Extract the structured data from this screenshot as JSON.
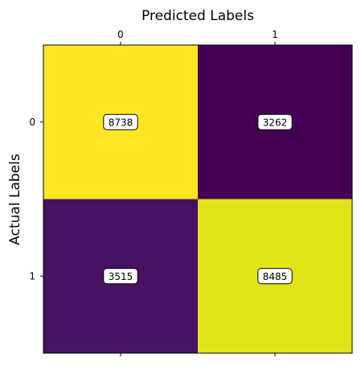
{
  "chart_data": {
    "type": "heatmap",
    "title": "Predicted Labels",
    "xlabel": "Predicted Labels",
    "ylabel": "Actual Labels",
    "x_categories": [
      "0",
      "1"
    ],
    "y_categories": [
      "0",
      "1"
    ],
    "values": [
      [
        8738,
        3262
      ],
      [
        3515,
        8485
      ]
    ],
    "cell_colors": [
      [
        "#fde725",
        "#440154"
      ],
      [
        "#471164",
        "#e1e418"
      ]
    ],
    "x_tick_position": "top",
    "grid": false
  }
}
